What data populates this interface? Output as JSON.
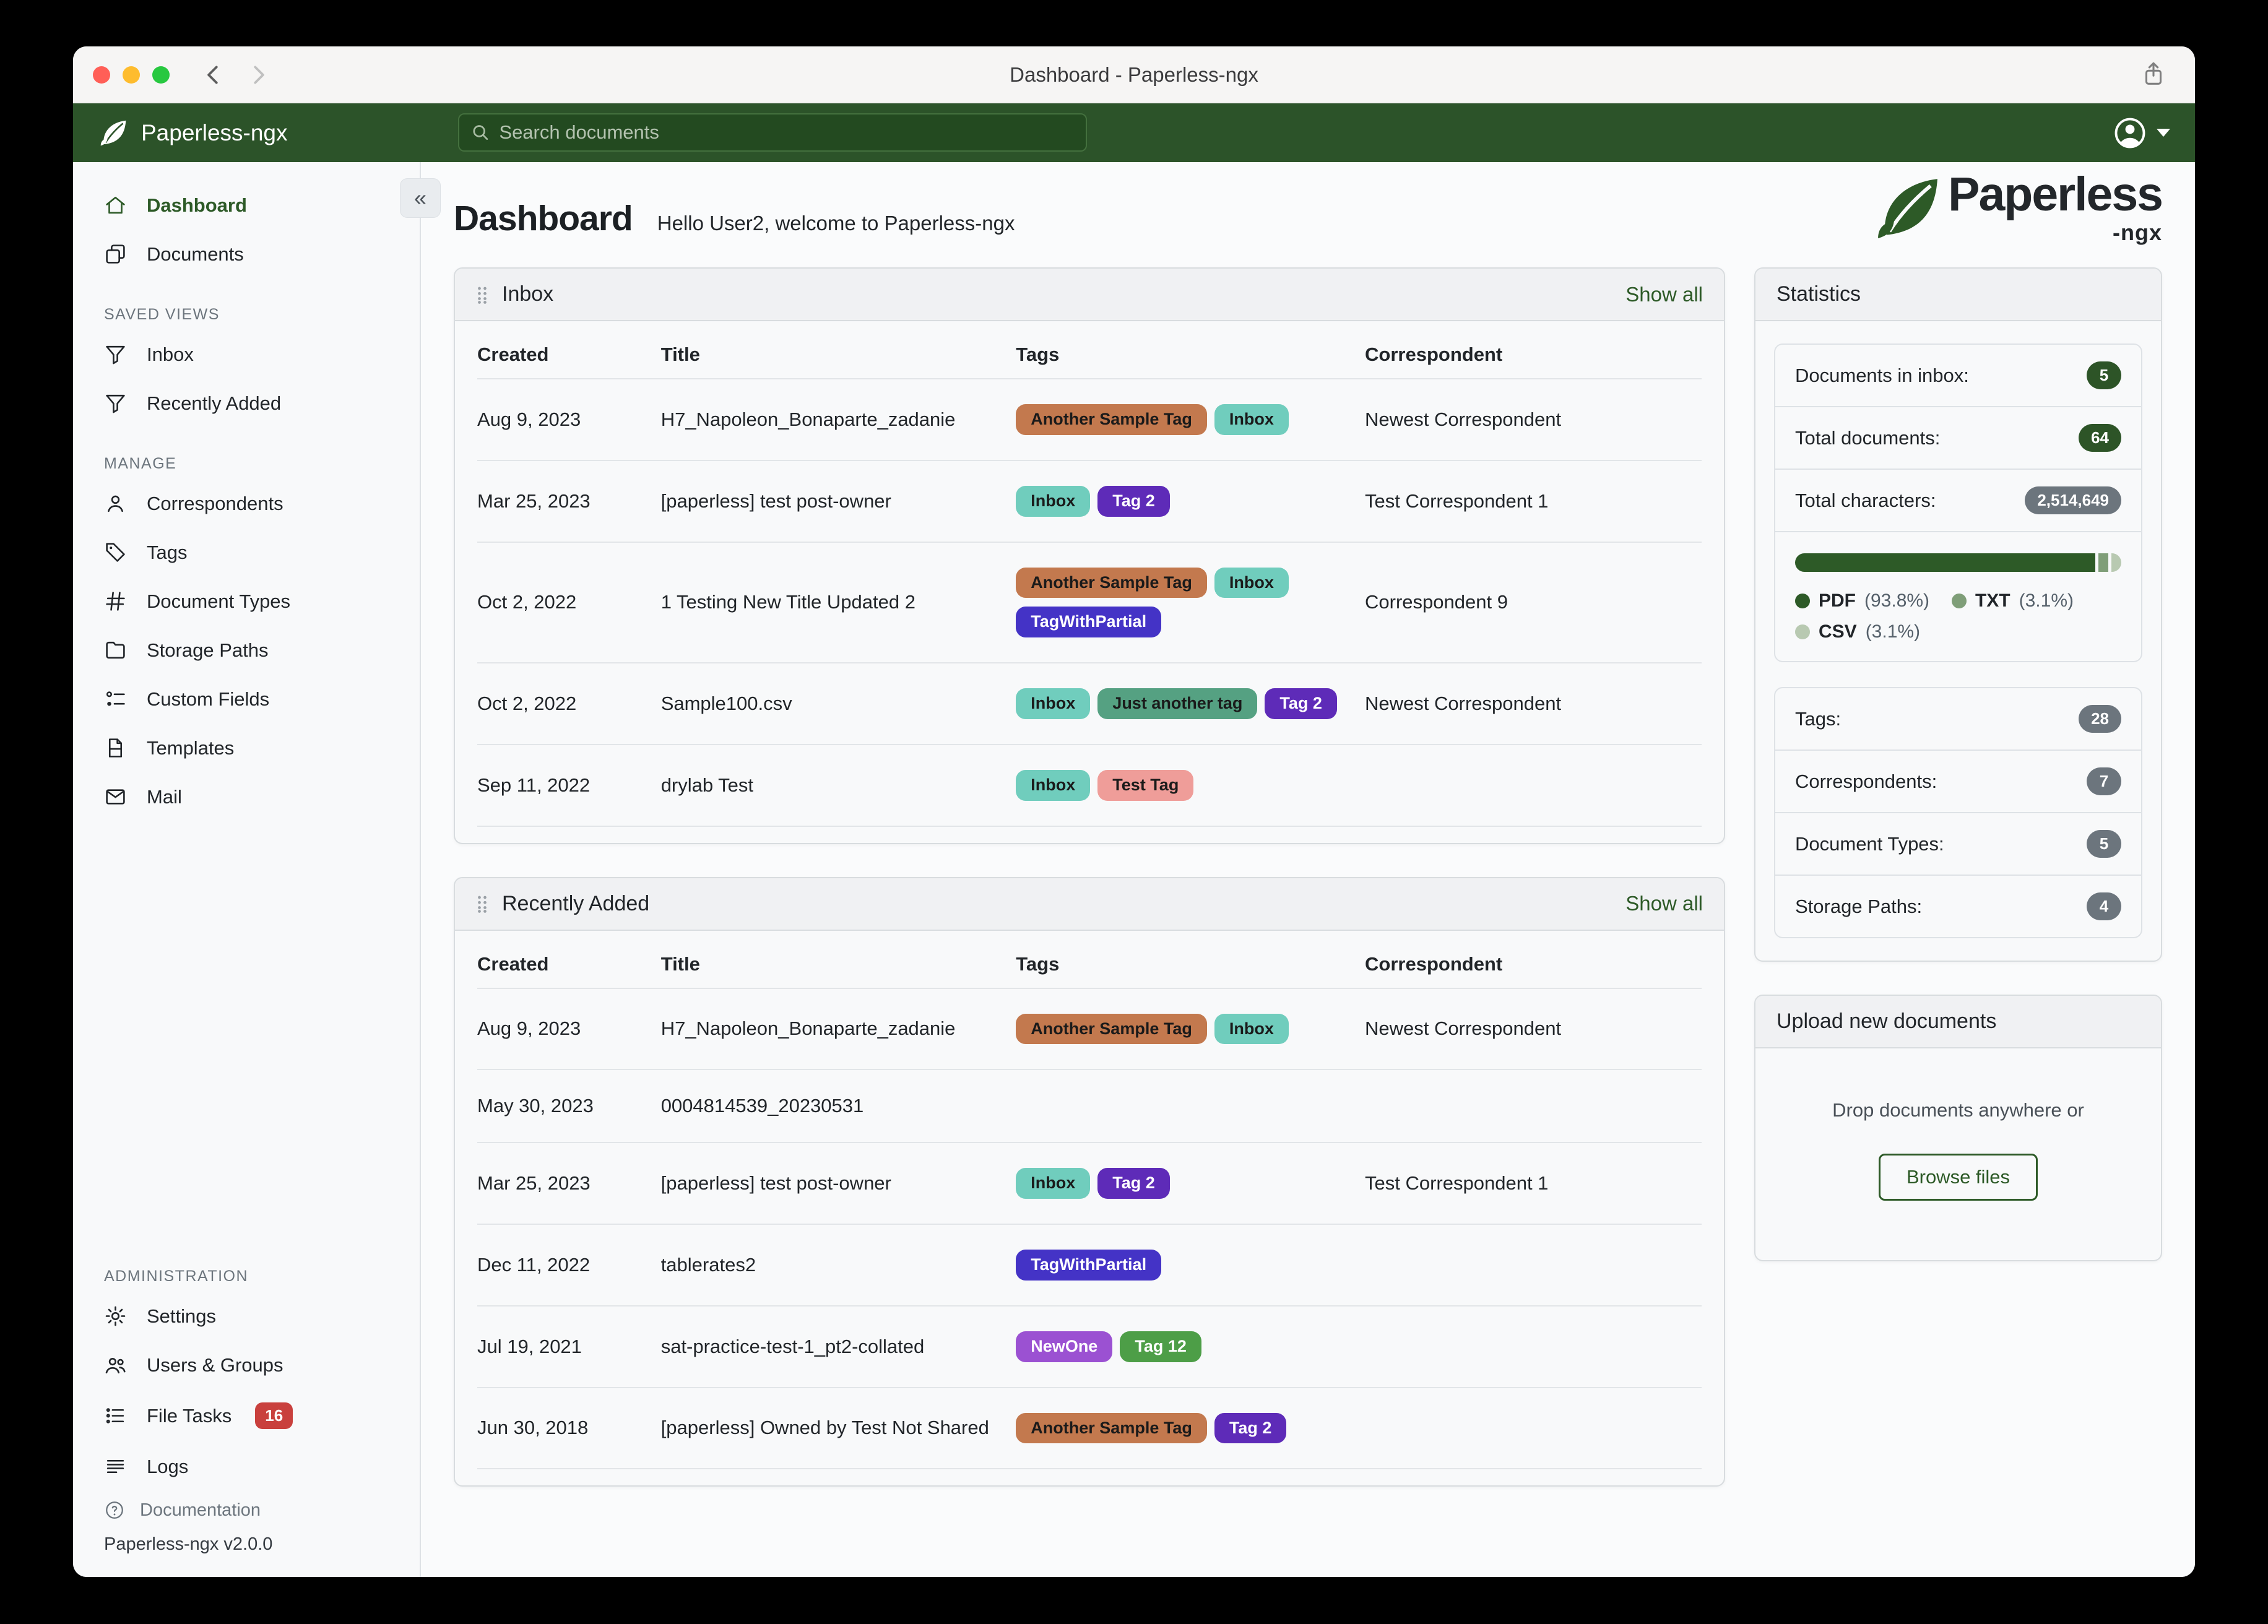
{
  "colors": {
    "accent": "#2d5a27",
    "navbar_green": "#2c5329",
    "badge_green": "#2d5427",
    "badge_gray": "#6c757d",
    "badge_red": "#c9403d"
  },
  "titlebar": {
    "title": "Dashboard - Paperless-ngx"
  },
  "navbar": {
    "brand": "Paperless-ngx",
    "search_placeholder": "Search documents"
  },
  "sidebar": {
    "primary": [
      {
        "label": "Dashboard",
        "icon": "home"
      },
      {
        "label": "Documents",
        "icon": "documents"
      }
    ],
    "saved_views": {
      "title": "SAVED VIEWS",
      "items": [
        {
          "label": "Inbox",
          "icon": "filter"
        },
        {
          "label": "Recently Added",
          "icon": "filter"
        }
      ]
    },
    "manage": {
      "title": "MANAGE",
      "items": [
        {
          "label": "Correspondents",
          "icon": "person"
        },
        {
          "label": "Tags",
          "icon": "tag"
        },
        {
          "label": "Document Types",
          "icon": "hash"
        },
        {
          "label": "Storage Paths",
          "icon": "folder"
        },
        {
          "label": "Custom Fields",
          "icon": "custom-fields"
        },
        {
          "label": "Templates",
          "icon": "file"
        },
        {
          "label": "Mail",
          "icon": "envelope"
        }
      ]
    },
    "administration": {
      "title": "ADMINISTRATION",
      "items": [
        {
          "label": "Settings",
          "icon": "gear"
        },
        {
          "label": "Users & Groups",
          "icon": "users"
        },
        {
          "label": "File Tasks",
          "icon": "tasks",
          "badge": "16"
        },
        {
          "label": "Logs",
          "icon": "logs"
        }
      ]
    },
    "documentation": "Documentation",
    "version": "Paperless-ngx v2.0.0"
  },
  "page": {
    "title": "Dashboard",
    "greeting": "Hello User2, welcome to Paperless-ngx"
  },
  "logo": {
    "name": "Paperless",
    "suffix": "-ngx"
  },
  "collapse_glyph": "«",
  "inbox": {
    "title": "Inbox",
    "show_all": "Show all",
    "columns": [
      "Created",
      "Title",
      "Tags",
      "Correspondent"
    ],
    "rows": [
      {
        "created": "Aug 9, 2023",
        "title": "H7_Napoleon_Bonaparte_zadanie",
        "tags": [
          {
            "label": "Another Sample Tag",
            "bg": "#c3794e",
            "fg": "#1a1a1a"
          },
          {
            "label": "Inbox",
            "bg": "#70cdbd",
            "fg": "#1a1a1a"
          }
        ],
        "correspondent": "Newest Correspondent"
      },
      {
        "created": "Mar 25, 2023",
        "title": "[paperless] test post-owner",
        "tags": [
          {
            "label": "Inbox",
            "bg": "#70cdbd",
            "fg": "#1a1a1a"
          },
          {
            "label": "Tag 2",
            "bg": "#5e2bb8",
            "fg": "#ffffff"
          }
        ],
        "correspondent": "Test Correspondent 1"
      },
      {
        "created": "Oct 2, 2022",
        "title": "1 Testing New Title Updated 2",
        "tags": [
          {
            "label": "Another Sample Tag",
            "bg": "#c3794e",
            "fg": "#1a1a1a"
          },
          {
            "label": "Inbox",
            "bg": "#70cdbd",
            "fg": "#1a1a1a"
          },
          {
            "label": "TagWithPartial",
            "bg": "#4433c6",
            "fg": "#ffffff"
          }
        ],
        "correspondent": "Correspondent 9"
      },
      {
        "created": "Oct 2, 2022",
        "title": "Sample100.csv",
        "tags": [
          {
            "label": "Inbox",
            "bg": "#70cdbd",
            "fg": "#1a1a1a"
          },
          {
            "label": "Just another tag",
            "bg": "#55a182",
            "fg": "#1a1a1a"
          },
          {
            "label": "Tag 2",
            "bg": "#5e2bb8",
            "fg": "#ffffff"
          }
        ],
        "correspondent": "Newest Correspondent"
      },
      {
        "created": "Sep 11, 2022",
        "title": "drylab Test",
        "tags": [
          {
            "label": "Inbox",
            "bg": "#70cdbd",
            "fg": "#1a1a1a"
          },
          {
            "label": "Test Tag",
            "bg": "#ef9d99",
            "fg": "#1a1a1a"
          }
        ],
        "correspondent": ""
      }
    ]
  },
  "recent": {
    "title": "Recently Added",
    "show_all": "Show all",
    "columns": [
      "Created",
      "Title",
      "Tags",
      "Correspondent"
    ],
    "rows": [
      {
        "created": "Aug 9, 2023",
        "title": "H7_Napoleon_Bonaparte_zadanie",
        "tags": [
          {
            "label": "Another Sample Tag",
            "bg": "#c3794e",
            "fg": "#1a1a1a"
          },
          {
            "label": "Inbox",
            "bg": "#70cdbd",
            "fg": "#1a1a1a"
          }
        ],
        "correspondent": "Newest Correspondent"
      },
      {
        "created": "May 30, 2023",
        "title": "0004814539_20230531",
        "tags": [],
        "correspondent": ""
      },
      {
        "created": "Mar 25, 2023",
        "title": "[paperless] test post-owner",
        "tags": [
          {
            "label": "Inbox",
            "bg": "#70cdbd",
            "fg": "#1a1a1a"
          },
          {
            "label": "Tag 2",
            "bg": "#5e2bb8",
            "fg": "#ffffff"
          }
        ],
        "correspondent": "Test Correspondent 1"
      },
      {
        "created": "Dec 11, 2022",
        "title": "tablerates2",
        "tags": [
          {
            "label": "TagWithPartial",
            "bg": "#4433c6",
            "fg": "#ffffff"
          }
        ],
        "correspondent": ""
      },
      {
        "created": "Jul 19, 2021",
        "title": "sat-practice-test-1_pt2-collated",
        "tags": [
          {
            "label": "NewOne",
            "bg": "#9b51d2",
            "fg": "#ffffff"
          },
          {
            "label": "Tag 12",
            "bg": "#4d9e47",
            "fg": "#ffffff"
          }
        ],
        "correspondent": ""
      },
      {
        "created": "Jun 30, 2018",
        "title": "[paperless] Owned by Test Not Shared",
        "tags": [
          {
            "label": "Another Sample Tag",
            "bg": "#c3794e",
            "fg": "#1a1a1a"
          },
          {
            "label": "Tag 2",
            "bg": "#5e2bb8",
            "fg": "#ffffff"
          }
        ],
        "correspondent": ""
      }
    ]
  },
  "statistics": {
    "title": "Statistics",
    "items": [
      {
        "label": "Documents in inbox:",
        "value": "5"
      },
      {
        "label": "Total documents:",
        "value": "64"
      },
      {
        "label": "Total characters:",
        "value": "2,514,649"
      }
    ],
    "file_types": {
      "segments": [
        {
          "name": "PDF",
          "pct": 93.8,
          "pct_label": "(93.8%)",
          "color": "#2d5a27"
        },
        {
          "name": "TXT",
          "pct": 3.1,
          "pct_label": "(3.1%)",
          "color": "#7f9e78"
        },
        {
          "name": "CSV",
          "pct": 3.1,
          "pct_label": "(3.1%)",
          "color": "#b8c9b1"
        }
      ]
    },
    "items2": [
      {
        "label": "Tags:",
        "value": "28"
      },
      {
        "label": "Correspondents:",
        "value": "7"
      },
      {
        "label": "Document Types:",
        "value": "5"
      },
      {
        "label": "Storage Paths:",
        "value": "4"
      }
    ]
  },
  "upload": {
    "title": "Upload new documents",
    "hint": "Drop documents anywhere or",
    "button_label": "Browse files"
  }
}
